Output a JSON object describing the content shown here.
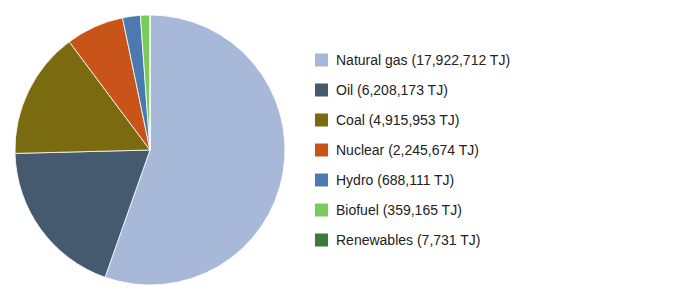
{
  "chart_data": {
    "type": "pie",
    "categories": [
      "Natural gas (17,922,712 TJ)",
      "Oil (6,208,173 TJ)",
      "Coal (4,915,953 TJ)",
      "Nuclear (2,245,674 TJ)",
      "Hydro (688,111 TJ)",
      "Biofuel (359,165 TJ)",
      "Renewables (7,731 TJ)"
    ],
    "values": [
      17922712,
      6208173,
      4915953,
      2245674,
      688111,
      359165,
      7731
    ],
    "colors": [
      "#a8b8d8",
      "#455a6e",
      "#7a6a10",
      "#c8541a",
      "#4a7ab0",
      "#7acc5a",
      "#3a7a3a"
    ],
    "legend": "right"
  }
}
